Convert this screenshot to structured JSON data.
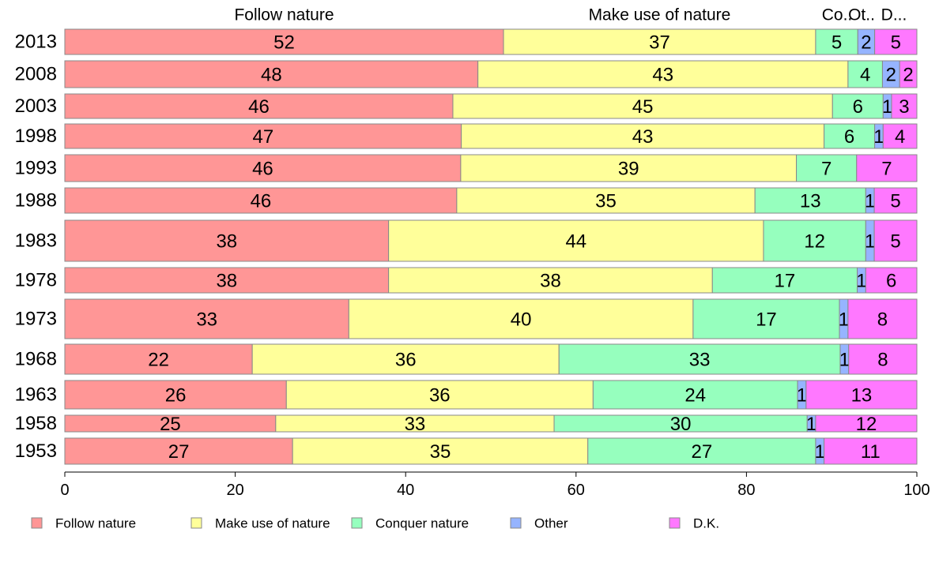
{
  "chart_data": {
    "type": "bar",
    "orientation": "horizontal",
    "stacked": true,
    "categories": [
      "2013",
      "2008",
      "2003",
      "1998",
      "1993",
      "1988",
      "1983",
      "1978",
      "1973",
      "1968",
      "1963",
      "1958",
      "1953"
    ],
    "series": [
      {
        "name": "Follow nature",
        "color": "#ff9696",
        "values": [
          52,
          48,
          46,
          47,
          46,
          46,
          38,
          38,
          33,
          22,
          26,
          25,
          27
        ]
      },
      {
        "name": "Make use of nature",
        "color": "#ffff9a",
        "values": [
          37,
          43,
          45,
          43,
          39,
          35,
          44,
          38,
          40,
          36,
          36,
          33,
          35
        ]
      },
      {
        "name": "Conquer nature",
        "color": "#96ffbe",
        "values": [
          5,
          4,
          6,
          6,
          7,
          13,
          12,
          17,
          17,
          33,
          24,
          30,
          27
        ]
      },
      {
        "name": "Other",
        "color": "#96b4ff",
        "values": [
          2,
          2,
          1,
          1,
          0,
          1,
          1,
          1,
          1,
          1,
          1,
          1,
          1
        ]
      },
      {
        "name": "D.K.",
        "color": "#ff78ff",
        "values": [
          5,
          2,
          3,
          4,
          7,
          5,
          5,
          6,
          8,
          8,
          13,
          12,
          11
        ]
      }
    ],
    "segment_labels": [
      [
        "52",
        "37",
        "5",
        "2",
        "5"
      ],
      [
        "48",
        "43",
        "4",
        "2",
        "2"
      ],
      [
        "46",
        "45",
        "6",
        "1",
        "3"
      ],
      [
        "47",
        "43",
        "6",
        "1",
        "4"
      ],
      [
        "46",
        "39",
        "7",
        "",
        "7"
      ],
      [
        "46",
        "35",
        "13",
        "1",
        "5"
      ],
      [
        "38",
        "44",
        "12",
        "1",
        "5"
      ],
      [
        "38",
        "38",
        "17",
        "1",
        "6"
      ],
      [
        "33",
        "40",
        "17",
        "1",
        "8"
      ],
      [
        "22",
        "36",
        "33",
        "1",
        "8"
      ],
      [
        "26",
        "36",
        "24",
        "1",
        "13"
      ],
      [
        "25",
        "33",
        "30",
        "1",
        "12"
      ],
      [
        "27",
        "35",
        "27",
        "1",
        "11"
      ]
    ],
    "top_labels": [
      "Follow nature",
      "Make use of nature",
      "Co..",
      "Ot..",
      "D..."
    ],
    "xlim": [
      0,
      100
    ],
    "x_ticks": [
      "0",
      "20",
      "40",
      "60",
      "80",
      "100"
    ],
    "grid": false,
    "legend": {
      "position": "bottom",
      "entries": [
        "Follow nature",
        "Make use of nature",
        "Conquer nature",
        "Other",
        "D.K."
      ]
    },
    "title": "",
    "xlabel": "",
    "ylabel": ""
  }
}
